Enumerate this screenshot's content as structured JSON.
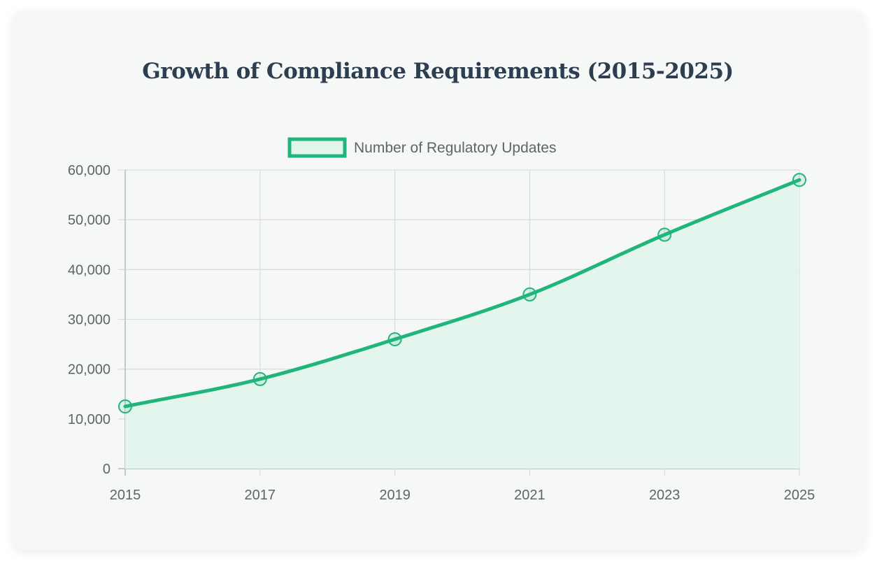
{
  "chart_data": {
    "type": "line",
    "title": "Growth of Compliance Requirements (2015-2025)",
    "xlabel": "",
    "ylabel": "",
    "categories": [
      "2015",
      "2017",
      "2019",
      "2021",
      "2023",
      "2025"
    ],
    "series": [
      {
        "name": "Number of Regulatory Updates",
        "values": [
          12500,
          18000,
          26000,
          35000,
          47000,
          58000
        ],
        "color": "#20b57b",
        "fill": "#e2f4ec"
      }
    ],
    "ylim": [
      0,
      60000
    ],
    "yticks": [
      0,
      10000,
      20000,
      30000,
      40000,
      50000,
      60000
    ],
    "ytick_labels": [
      "0",
      "10,000",
      "20,000",
      "30,000",
      "40,000",
      "50,000",
      "60,000"
    ],
    "grid": true,
    "legend_position": "top-center",
    "area_fill": true,
    "smooth": true
  }
}
